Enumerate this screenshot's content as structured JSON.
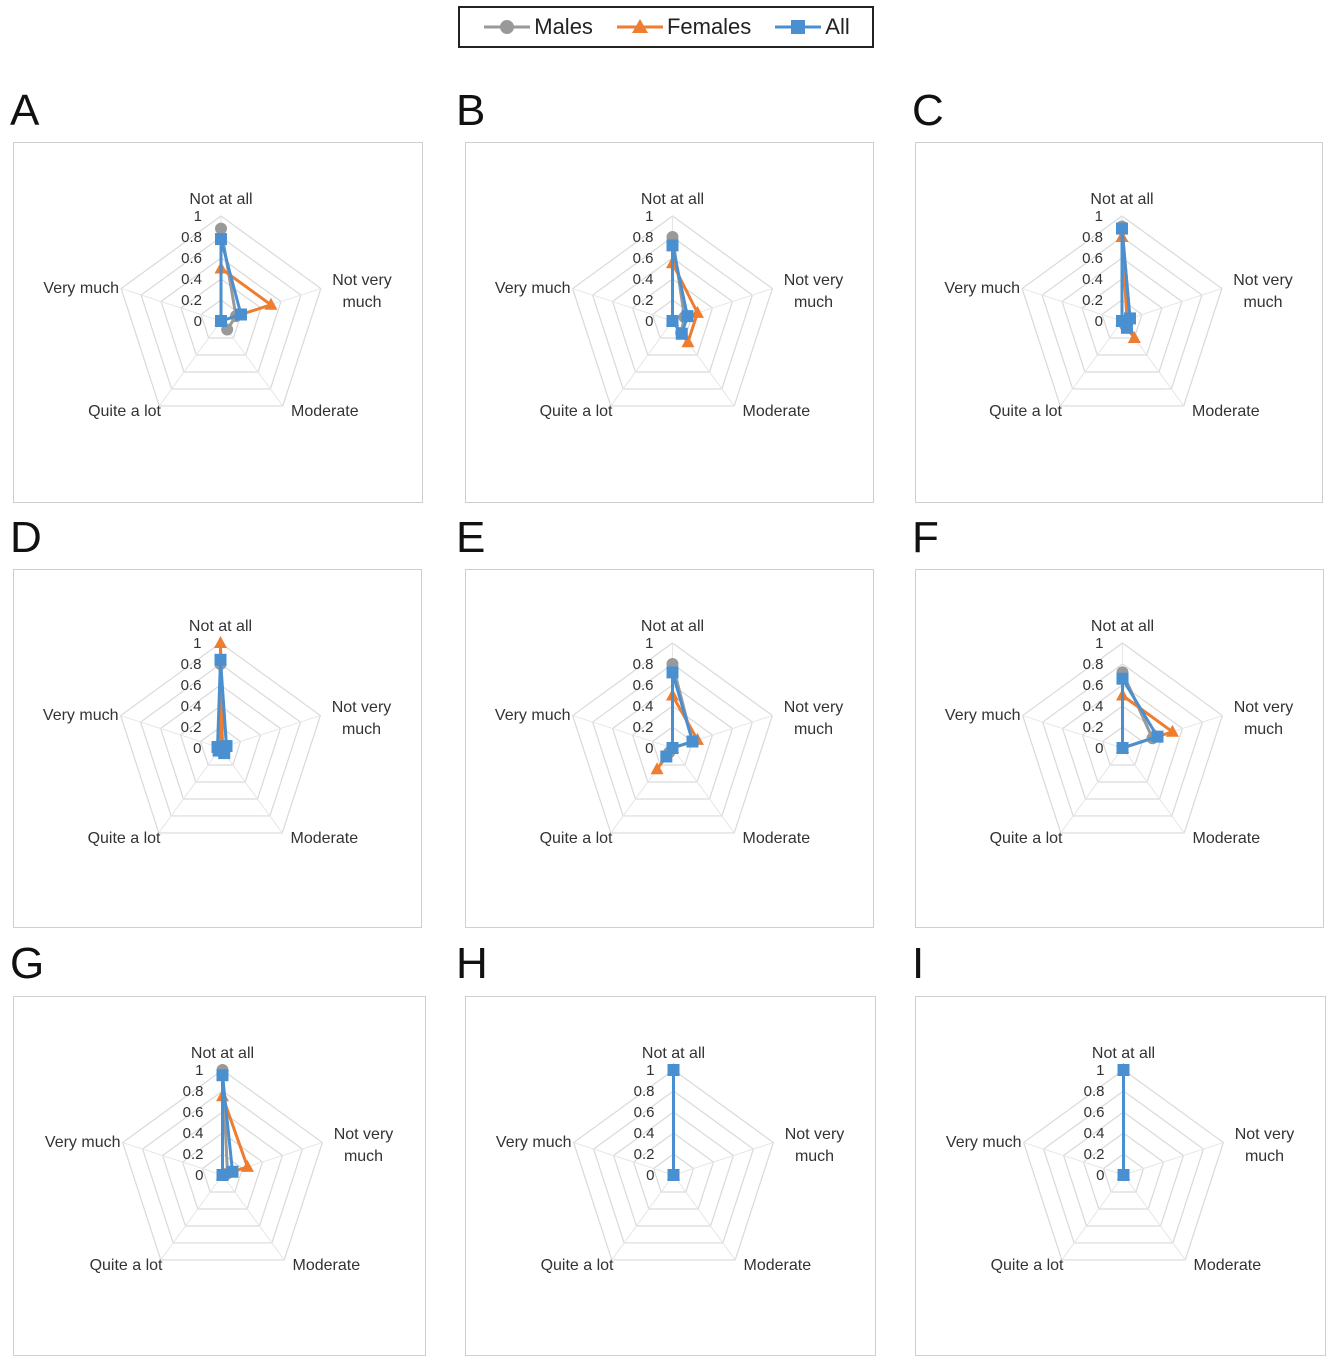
{
  "legend": [
    {
      "name": "Males",
      "color": "#999999",
      "marker": "circle"
    },
    {
      "name": "Females",
      "color": "#ED7D31",
      "marker": "triangle"
    },
    {
      "name": "All",
      "color": "#4A90D0",
      "marker": "square"
    }
  ],
  "chart_data": [
    {
      "type": "radar",
      "panel": "A",
      "axes": [
        "Not at all",
        "Not very much",
        "Moderate",
        "Quite a lot",
        "Very much"
      ],
      "ticks": [
        "0",
        "0.2",
        "0.4",
        "0.6",
        "0.8",
        "1"
      ],
      "rlim": [
        0,
        1
      ],
      "grid": true,
      "legend_position": "top",
      "series": [
        {
          "name": "Males",
          "values": [
            0.88,
            0.15,
            0.1,
            0.0,
            0.0
          ]
        },
        {
          "name": "Females",
          "values": [
            0.5,
            0.5,
            0.0,
            0.0,
            0.0
          ]
        },
        {
          "name": "All",
          "values": [
            0.78,
            0.2,
            0.0,
            0.0,
            0.0
          ]
        }
      ]
    },
    {
      "type": "radar",
      "panel": "B",
      "axes": [
        "Not at all",
        "Not very much",
        "Moderate",
        "Quite a lot",
        "Very much"
      ],
      "ticks": [
        "0",
        "0.2",
        "0.4",
        "0.6",
        "0.8",
        "1"
      ],
      "rlim": [
        0,
        1
      ],
      "grid": true,
      "legend_position": "top",
      "series": [
        {
          "name": "Males",
          "values": [
            0.8,
            0.12,
            0.14,
            0.0,
            0.0
          ]
        },
        {
          "name": "Females",
          "values": [
            0.55,
            0.25,
            0.25,
            0.0,
            0.0
          ]
        },
        {
          "name": "All",
          "values": [
            0.72,
            0.15,
            0.15,
            0.0,
            0.0
          ]
        }
      ]
    },
    {
      "type": "radar",
      "panel": "C",
      "axes": [
        "Not at all",
        "Not very much",
        "Moderate",
        "Quite a lot",
        "Very much"
      ],
      "ticks": [
        "0",
        "0.2",
        "0.4",
        "0.6",
        "0.8",
        "1"
      ],
      "rlim": [
        0,
        1
      ],
      "grid": true,
      "legend_position": "top",
      "series": [
        {
          "name": "Males",
          "values": [
            0.9,
            0.08,
            0.05,
            0.0,
            0.0
          ]
        },
        {
          "name": "Females",
          "values": [
            0.8,
            0.05,
            0.2,
            0.0,
            0.0
          ]
        },
        {
          "name": "All",
          "values": [
            0.88,
            0.08,
            0.08,
            0.0,
            0.0
          ]
        }
      ]
    },
    {
      "type": "radar",
      "panel": "D",
      "axes": [
        "Not at all",
        "Not very much",
        "Moderate",
        "Quite a lot",
        "Very much"
      ],
      "ticks": [
        "0",
        "0.2",
        "0.4",
        "0.6",
        "0.8",
        "1"
      ],
      "rlim": [
        0,
        1
      ],
      "grid": true,
      "legend_position": "top",
      "series": [
        {
          "name": "Males",
          "values": [
            0.8,
            0.06,
            0.06,
            0.02,
            0.02
          ]
        },
        {
          "name": "Females",
          "values": [
            1.0,
            0.02,
            0.02,
            0.0,
            0.0
          ]
        },
        {
          "name": "All",
          "values": [
            0.84,
            0.06,
            0.06,
            0.03,
            0.03
          ]
        }
      ]
    },
    {
      "type": "radar",
      "panel": "E",
      "axes": [
        "Not at all",
        "Not very much",
        "Moderate",
        "Quite a lot",
        "Very much"
      ],
      "ticks": [
        "0",
        "0.2",
        "0.4",
        "0.6",
        "0.8",
        "1"
      ],
      "rlim": [
        0,
        1
      ],
      "grid": true,
      "legend_position": "top",
      "series": [
        {
          "name": "Males",
          "values": [
            0.8,
            0.2,
            0.0,
            0.05,
            0.0
          ]
        },
        {
          "name": "Females",
          "values": [
            0.5,
            0.25,
            0.0,
            0.25,
            0.0
          ]
        },
        {
          "name": "All",
          "values": [
            0.72,
            0.2,
            0.0,
            0.1,
            0.0
          ]
        }
      ]
    },
    {
      "type": "radar",
      "panel": "F",
      "axes": [
        "Not at all",
        "Not very much",
        "Moderate",
        "Quite a lot",
        "Very much"
      ],
      "ticks": [
        "0",
        "0.2",
        "0.4",
        "0.6",
        "0.8",
        "1"
      ],
      "rlim": [
        0,
        1
      ],
      "grid": true,
      "legend_position": "top",
      "series": [
        {
          "name": "Males",
          "values": [
            0.72,
            0.3,
            0.0,
            0.0,
            0.0
          ]
        },
        {
          "name": "Females",
          "values": [
            0.5,
            0.5,
            0.0,
            0.0,
            0.0
          ]
        },
        {
          "name": "All",
          "values": [
            0.66,
            0.35,
            0.0,
            0.0,
            0.0
          ]
        }
      ]
    },
    {
      "type": "radar",
      "panel": "G",
      "axes": [
        "Not at all",
        "Not very much",
        "Moderate",
        "Quite a lot",
        "Very much"
      ],
      "ticks": [
        "0",
        "0.2",
        "0.4",
        "0.6",
        "0.8",
        "1"
      ],
      "rlim": [
        0,
        1
      ],
      "grid": true,
      "legend_position": "top",
      "series": [
        {
          "name": "Males",
          "values": [
            1.0,
            0.05,
            0.0,
            0.0,
            0.0
          ]
        },
        {
          "name": "Females",
          "values": [
            0.75,
            0.25,
            0.0,
            0.0,
            0.0
          ]
        },
        {
          "name": "All",
          "values": [
            0.95,
            0.1,
            0.0,
            0.0,
            0.0
          ]
        }
      ]
    },
    {
      "type": "radar",
      "panel": "H",
      "axes": [
        "Not at all",
        "Not very much",
        "Moderate",
        "Quite a lot",
        "Very much"
      ],
      "ticks": [
        "0",
        "0.2",
        "0.4",
        "0.6",
        "0.8",
        "1"
      ],
      "rlim": [
        0,
        1
      ],
      "grid": true,
      "legend_position": "top",
      "series": [
        {
          "name": "Males",
          "values": [
            1.0,
            0.0,
            0.0,
            0.0,
            0.0
          ]
        },
        {
          "name": "Females",
          "values": [
            1.0,
            0.0,
            0.0,
            0.0,
            0.0
          ]
        },
        {
          "name": "All",
          "values": [
            1.0,
            0.0,
            0.0,
            0.0,
            0.0
          ]
        }
      ]
    },
    {
      "type": "radar",
      "panel": "I",
      "axes": [
        "Not at all",
        "Not very much",
        "Moderate",
        "Quite a lot",
        "Very much"
      ],
      "ticks": [
        "0",
        "0.2",
        "0.4",
        "0.6",
        "0.8",
        "1"
      ],
      "rlim": [
        0,
        1
      ],
      "grid": true,
      "legend_position": "top",
      "series": [
        {
          "name": "Males",
          "values": [
            1.0,
            0.0,
            0.0,
            0.0,
            0.0
          ]
        },
        {
          "name": "Females",
          "values": [
            1.0,
            0.0,
            0.0,
            0.0,
            0.0
          ]
        },
        {
          "name": "All",
          "values": [
            1.0,
            0.0,
            0.0,
            0.0,
            0.0
          ]
        }
      ]
    }
  ]
}
